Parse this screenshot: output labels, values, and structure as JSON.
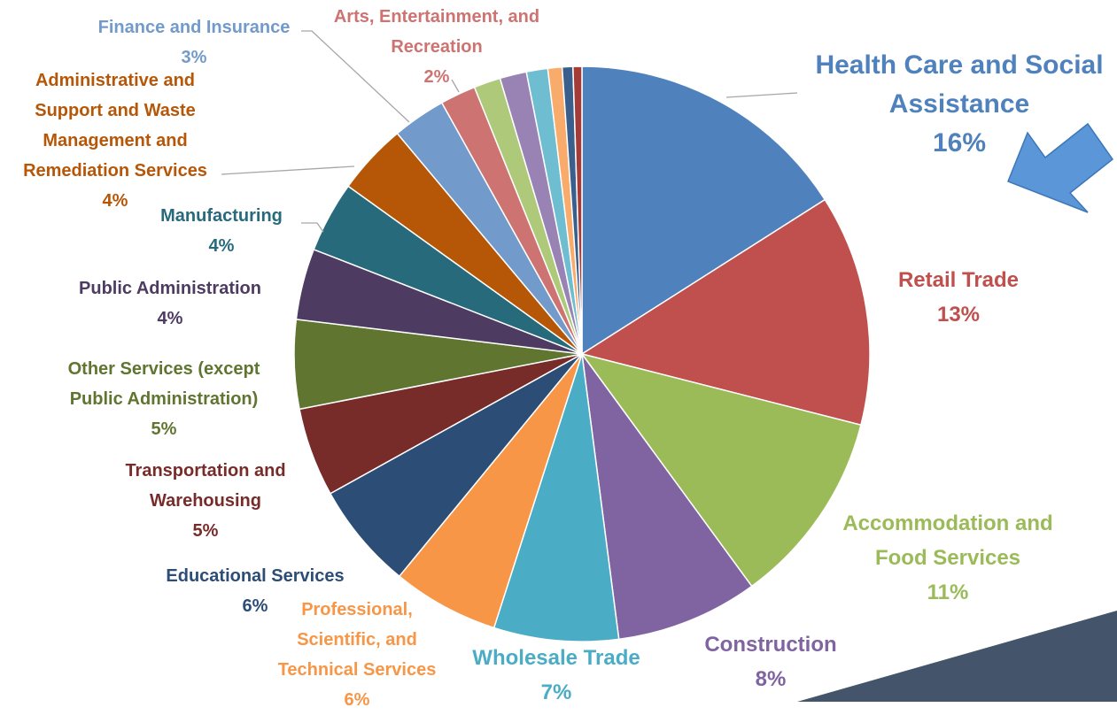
{
  "chart_data": {
    "type": "pie",
    "categories": [
      "Health Care and Social Assistance",
      "Retail Trade",
      "Accommodation and Food Services",
      "Construction",
      "Wholesale Trade",
      "Professional, Scientific, and Technical Services",
      "Educational Services",
      "Transportation and Warehousing",
      "Other Services (except Public Administration)",
      "Public Administration",
      "Manufacturing",
      "Administrative and Support and Waste Management and Remediation Services",
      "Finance and Insurance",
      "Arts, Entertainment, and Recreation",
      null,
      null,
      null,
      null,
      null,
      null
    ],
    "values": [
      16,
      13,
      11,
      8,
      7,
      6,
      6,
      5,
      5,
      4,
      4,
      4,
      3,
      2,
      1.5,
      1.5,
      1.2,
      0.8,
      0.6,
      0.5
    ],
    "value_labels": [
      "16%",
      "13%",
      "11%",
      "8%",
      "7%",
      "6%",
      "6%",
      "5%",
      "5%",
      "4%",
      "4%",
      "4%",
      "3%",
      "2%",
      null,
      null,
      null,
      null,
      null,
      null
    ],
    "colors": [
      "#4f81bd",
      "#c0504d",
      "#9bbb59",
      "#8064a2",
      "#4bacc6",
      "#f79646",
      "#2c4d75",
      "#772c2a",
      "#5f7530",
      "#4d3b62",
      "#276a7c",
      "#b65708",
      "#729aca",
      "#cd7371",
      "#afc97a",
      "#9983b5",
      "#6fbdd1",
      "#f9ab6b",
      "#3a5f8c",
      "#a33c38"
    ]
  }
}
